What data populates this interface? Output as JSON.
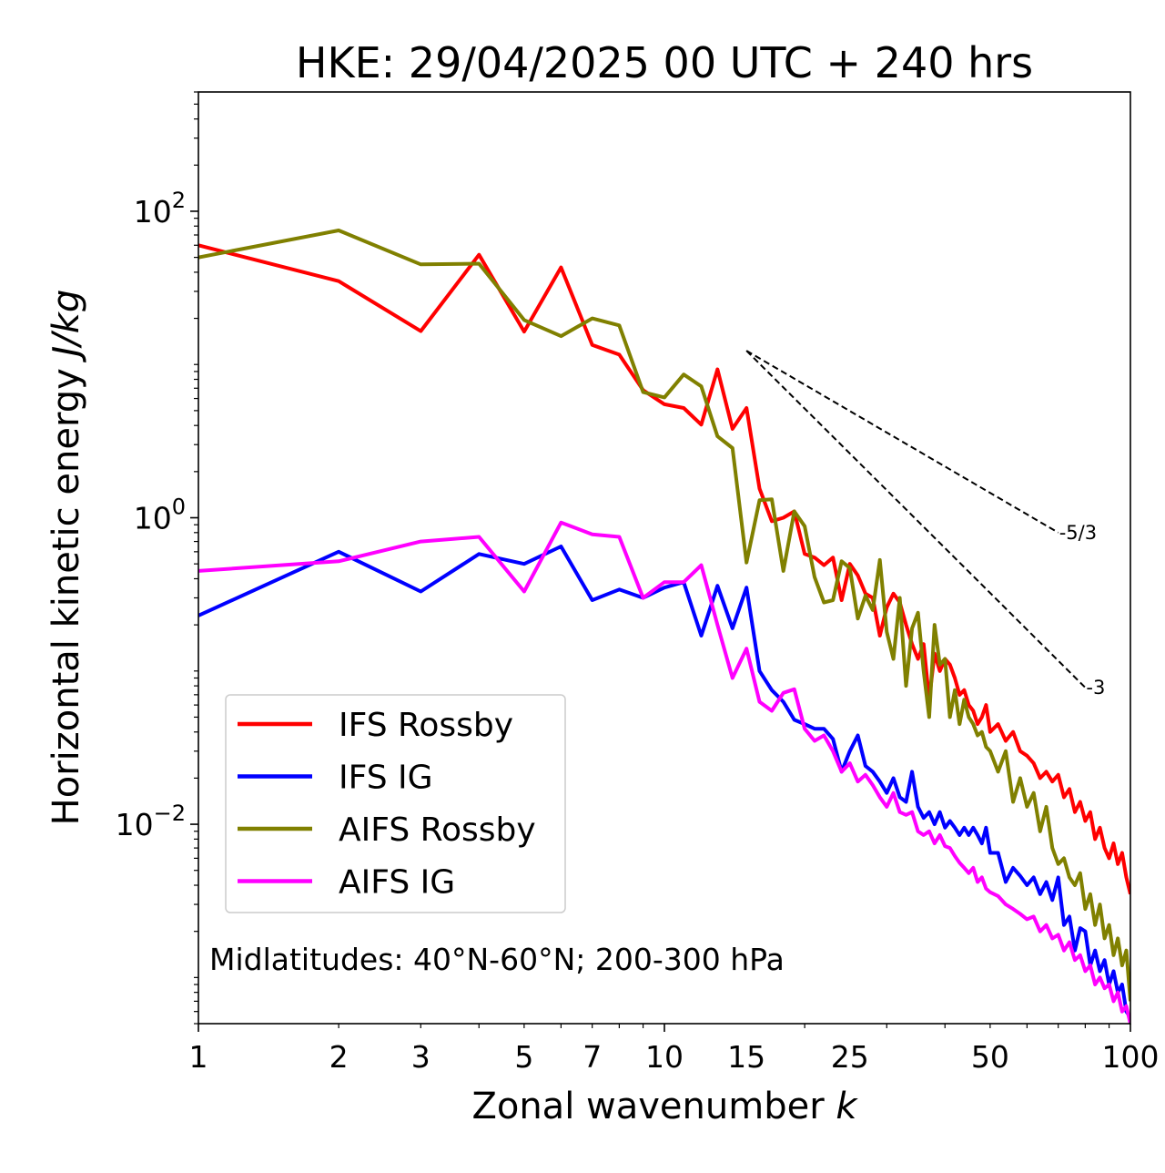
{
  "chart_data": {
    "type": "line",
    "title": "HKE: 29/04/2025 00 UTC + 240 hrs",
    "xlabel_main": "Zonal wavenumber ",
    "xlabel_var": "k",
    "ylabel_main": "Horizontal kinetic energy ",
    "ylabel_unit": "J/kg",
    "x_scale": "log",
    "y_scale": "log",
    "xlim": [
      1,
      100
    ],
    "ylim": [
      0.0005,
      600
    ],
    "xticks": [
      {
        "value": 1,
        "label": "1"
      },
      {
        "value": 2,
        "label": "2"
      },
      {
        "value": 3,
        "label": "3"
      },
      {
        "value": 5,
        "label": "5"
      },
      {
        "value": 7,
        "label": "7"
      },
      {
        "value": 10,
        "label": "10"
      },
      {
        "value": 15,
        "label": "15"
      },
      {
        "value": 25,
        "label": "25"
      },
      {
        "value": 50,
        "label": "50"
      },
      {
        "value": 100,
        "label": "100"
      }
    ],
    "yticks": [
      {
        "value": 0.01,
        "base": "10",
        "exp": "−2"
      },
      {
        "value": 1,
        "base": "10",
        "exp": "0"
      },
      {
        "value": 100,
        "base": "10",
        "exp": "2"
      }
    ],
    "annotation": "Midlatitudes: 40°N-60°N; 200-300 hPa",
    "legend_position": "lower-left",
    "grid": false,
    "slope_lines": [
      {
        "label": "-5/3",
        "x": [
          15,
          70
        ],
        "y": [
          12.3,
          0.8
        ]
      },
      {
        "label": "-3",
        "x": [
          15,
          80
        ],
        "y": [
          12.3,
          0.078
        ]
      }
    ],
    "series": [
      {
        "name": "IFS Rossby",
        "color": "#ff0000",
        "x": [
          1,
          2,
          3,
          4,
          5,
          6,
          7,
          8,
          9,
          10,
          11,
          12,
          13,
          14,
          15,
          16,
          17,
          18,
          19,
          20,
          21,
          22,
          23,
          24,
          25,
          26,
          27,
          28,
          29,
          30,
          31,
          32,
          33,
          34,
          35,
          36,
          37,
          38,
          39,
          40,
          41,
          42,
          43,
          44,
          45,
          46,
          47,
          48,
          49,
          50,
          52,
          54,
          56,
          58,
          60,
          62,
          64,
          66,
          68,
          70,
          72,
          74,
          76,
          78,
          80,
          82,
          84,
          86,
          88,
          90,
          92,
          94,
          96,
          98,
          100
        ],
        "y": [
          60,
          35,
          16.5,
          52,
          16.4,
          43,
          13.4,
          11.6,
          6.8,
          5.5,
          5.2,
          4.05,
          9.3,
          3.8,
          5.2,
          1.55,
          0.95,
          1.0,
          1.1,
          0.58,
          0.55,
          0.49,
          0.55,
          0.29,
          0.5,
          0.42,
          0.32,
          0.3,
          0.17,
          0.26,
          0.32,
          0.28,
          0.2,
          0.15,
          0.12,
          0.15,
          0.065,
          0.13,
          0.1,
          0.12,
          0.11,
          0.09,
          0.07,
          0.075,
          0.06,
          0.055,
          0.045,
          0.05,
          0.06,
          0.04,
          0.045,
          0.035,
          0.04,
          0.03,
          0.028,
          0.025,
          0.02,
          0.022,
          0.019,
          0.021,
          0.015,
          0.017,
          0.012,
          0.014,
          0.0105,
          0.012,
          0.008,
          0.0095,
          0.007,
          0.006,
          0.0075,
          0.0055,
          0.0065,
          0.0045,
          0.0035
        ]
      },
      {
        "name": "IFS IG",
        "color": "#0000ff",
        "x": [
          1,
          2,
          3,
          4,
          5,
          6,
          7,
          8,
          9,
          10,
          11,
          12,
          13,
          14,
          15,
          16,
          17,
          18,
          19,
          20,
          21,
          22,
          23,
          24,
          25,
          26,
          27,
          28,
          29,
          30,
          31,
          32,
          33,
          34,
          35,
          36,
          37,
          38,
          39,
          40,
          41,
          42,
          43,
          44,
          45,
          46,
          47,
          48,
          49,
          50,
          52,
          54,
          56,
          58,
          60,
          62,
          64,
          66,
          68,
          70,
          72,
          74,
          76,
          78,
          80,
          82,
          84,
          86,
          88,
          90,
          92,
          94,
          96,
          98,
          100
        ],
        "y": [
          0.23,
          0.6,
          0.33,
          0.58,
          0.5,
          0.65,
          0.29,
          0.34,
          0.3,
          0.35,
          0.38,
          0.17,
          0.36,
          0.19,
          0.35,
          0.1,
          0.075,
          0.063,
          0.048,
          0.045,
          0.042,
          0.042,
          0.036,
          0.022,
          0.03,
          0.038,
          0.024,
          0.022,
          0.019,
          0.016,
          0.02,
          0.015,
          0.014,
          0.022,
          0.013,
          0.011,
          0.012,
          0.01,
          0.012,
          0.0095,
          0.0105,
          0.0095,
          0.0085,
          0.0095,
          0.0085,
          0.0095,
          0.0085,
          0.0075,
          0.0095,
          0.0065,
          0.0065,
          0.0042,
          0.0052,
          0.0046,
          0.004,
          0.0045,
          0.0035,
          0.0042,
          0.0032,
          0.0045,
          0.0022,
          0.0025,
          0.0015,
          0.0021,
          0.002,
          0.0012,
          0.0015,
          0.0011,
          0.0013,
          0.0009,
          0.0011,
          0.0008,
          0.0009,
          0.0006,
          0.00055
        ]
      },
      {
        "name": "AIFS Rossby",
        "color": "#808000",
        "x": [
          1,
          2,
          3,
          4,
          5,
          6,
          7,
          8,
          9,
          10,
          11,
          12,
          13,
          14,
          15,
          16,
          17,
          18,
          19,
          20,
          21,
          22,
          23,
          24,
          25,
          26,
          27,
          28,
          29,
          30,
          31,
          32,
          33,
          34,
          35,
          36,
          37,
          38,
          39,
          40,
          41,
          42,
          43,
          44,
          45,
          46,
          47,
          48,
          49,
          50,
          52,
          54,
          56,
          58,
          60,
          62,
          64,
          66,
          68,
          70,
          72,
          74,
          76,
          78,
          80,
          82,
          84,
          86,
          88,
          90,
          92,
          94,
          96,
          98,
          100
        ],
        "y": [
          50,
          75,
          45,
          45.5,
          19.5,
          15.3,
          20,
          18,
          6.6,
          6.1,
          8.6,
          7.2,
          3.4,
          2.85,
          0.51,
          1.3,
          1.32,
          0.45,
          1.1,
          0.88,
          0.41,
          0.28,
          0.29,
          0.52,
          0.47,
          0.22,
          0.31,
          0.25,
          0.53,
          0.18,
          0.12,
          0.3,
          0.08,
          0.19,
          0.24,
          0.1,
          0.05,
          0.2,
          0.11,
          0.12,
          0.05,
          0.075,
          0.045,
          0.065,
          0.05,
          0.045,
          0.038,
          0.04,
          0.032,
          0.03,
          0.022,
          0.03,
          0.014,
          0.02,
          0.013,
          0.016,
          0.009,
          0.013,
          0.007,
          0.0055,
          0.006,
          0.0045,
          0.004,
          0.0048,
          0.0028,
          0.0035,
          0.0022,
          0.003,
          0.0018,
          0.0022,
          0.0014,
          0.0018,
          0.0012,
          0.0015,
          0.0007
        ]
      },
      {
        "name": "AIFS IG",
        "color": "#ff00ff",
        "x": [
          1,
          2,
          3,
          4,
          5,
          6,
          7,
          8,
          9,
          10,
          11,
          12,
          13,
          14,
          15,
          16,
          17,
          18,
          19,
          20,
          21,
          22,
          23,
          24,
          25,
          26,
          27,
          28,
          29,
          30,
          31,
          32,
          33,
          34,
          35,
          36,
          37,
          38,
          39,
          40,
          41,
          42,
          43,
          44,
          45,
          46,
          47,
          48,
          49,
          50,
          52,
          54,
          56,
          58,
          60,
          62,
          64,
          66,
          68,
          70,
          72,
          74,
          76,
          78,
          80,
          82,
          84,
          86,
          88,
          90,
          92,
          94,
          96,
          98,
          100
        ],
        "y": [
          0.45,
          0.52,
          0.7,
          0.75,
          0.33,
          0.93,
          0.78,
          0.75,
          0.3,
          0.38,
          0.38,
          0.49,
          0.2,
          0.09,
          0.14,
          0.063,
          0.055,
          0.072,
          0.076,
          0.042,
          0.035,
          0.038,
          0.03,
          0.022,
          0.025,
          0.019,
          0.021,
          0.018,
          0.015,
          0.013,
          0.016,
          0.012,
          0.0115,
          0.012,
          0.009,
          0.0085,
          0.009,
          0.0075,
          0.0085,
          0.0072,
          0.007,
          0.0062,
          0.0056,
          0.0052,
          0.0048,
          0.0052,
          0.0042,
          0.0045,
          0.0038,
          0.0036,
          0.0034,
          0.003,
          0.0028,
          0.0026,
          0.0024,
          0.0025,
          0.002,
          0.0022,
          0.0018,
          0.0019,
          0.0015,
          0.0017,
          0.0013,
          0.0014,
          0.0011,
          0.0012,
          0.0009,
          0.001,
          0.00085,
          0.0009,
          0.0007,
          0.0008,
          0.0006,
          0.00065,
          0.0005
        ]
      }
    ]
  }
}
